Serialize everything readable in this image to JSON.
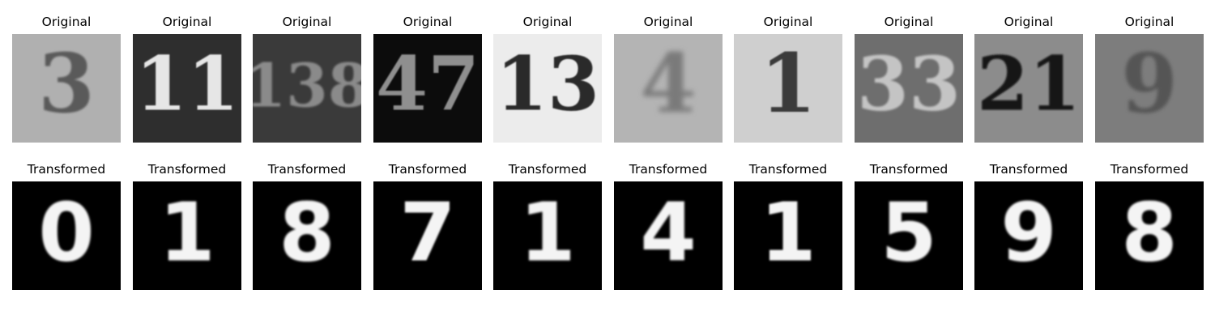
{
  "figure": {
    "rows": [
      {
        "id": "original",
        "panels": [
          {
            "title": "Original",
            "digit": "3",
            "bg": "#b0b0b0",
            "fg": "#5a5a5a",
            "blur": 1.4
          },
          {
            "title": "Original",
            "digit": "11",
            "bg": "#2e2e2e",
            "fg": "#e6e6e6",
            "blur": 0.8
          },
          {
            "title": "Original",
            "digit": "138",
            "bg": "#3a3a3a",
            "fg": "#8a8a8a",
            "blur": 1.2
          },
          {
            "title": "Original",
            "digit": "47",
            "bg": "#0c0c0c",
            "fg": "#8f8f8f",
            "blur": 0.8
          },
          {
            "title": "Original",
            "digit": "13",
            "bg": "#ececec",
            "fg": "#2a2a2a",
            "blur": 0.9
          },
          {
            "title": "Original",
            "digit": "4",
            "bg": "#b4b4b4",
            "fg": "#7a7a7a",
            "blur": 3.2
          },
          {
            "title": "Original",
            "digit": "1",
            "bg": "#cfcfcf",
            "fg": "#3a3a3a",
            "blur": 0.9
          },
          {
            "title": "Original",
            "digit": "33",
            "bg": "#6e6e6e",
            "fg": "#c4c4c4",
            "blur": 1.3
          },
          {
            "title": "Original",
            "digit": "21",
            "bg": "#8c8c8c",
            "fg": "#151515",
            "blur": 1.0
          },
          {
            "title": "Original",
            "digit": "9",
            "bg": "#7d7d7d",
            "fg": "#545454",
            "blur": 2.2
          }
        ]
      },
      {
        "id": "transformed",
        "panels": [
          {
            "title": "Transformed",
            "digit": "0",
            "bg": "#000000",
            "fg": "#f4f4f4",
            "blur": 1.2
          },
          {
            "title": "Transformed",
            "digit": "1",
            "bg": "#000000",
            "fg": "#f4f4f4",
            "blur": 1.2
          },
          {
            "title": "Transformed",
            "digit": "8",
            "bg": "#000000",
            "fg": "#f4f4f4",
            "blur": 1.2
          },
          {
            "title": "Transformed",
            "digit": "7",
            "bg": "#000000",
            "fg": "#f4f4f4",
            "blur": 1.0
          },
          {
            "title": "Transformed",
            "digit": "1",
            "bg": "#000000",
            "fg": "#f4f4f4",
            "blur": 1.2
          },
          {
            "title": "Transformed",
            "digit": "4",
            "bg": "#000000",
            "fg": "#f4f4f4",
            "blur": 1.4
          },
          {
            "title": "Transformed",
            "digit": "1",
            "bg": "#000000",
            "fg": "#f4f4f4",
            "blur": 1.0
          },
          {
            "title": "Transformed",
            "digit": "5",
            "bg": "#000000",
            "fg": "#f4f4f4",
            "blur": 1.4
          },
          {
            "title": "Transformed",
            "digit": "9",
            "bg": "#000000",
            "fg": "#f4f4f4",
            "blur": 1.2
          },
          {
            "title": "Transformed",
            "digit": "8",
            "bg": "#000000",
            "fg": "#f4f4f4",
            "blur": 1.2
          }
        ]
      }
    ]
  }
}
